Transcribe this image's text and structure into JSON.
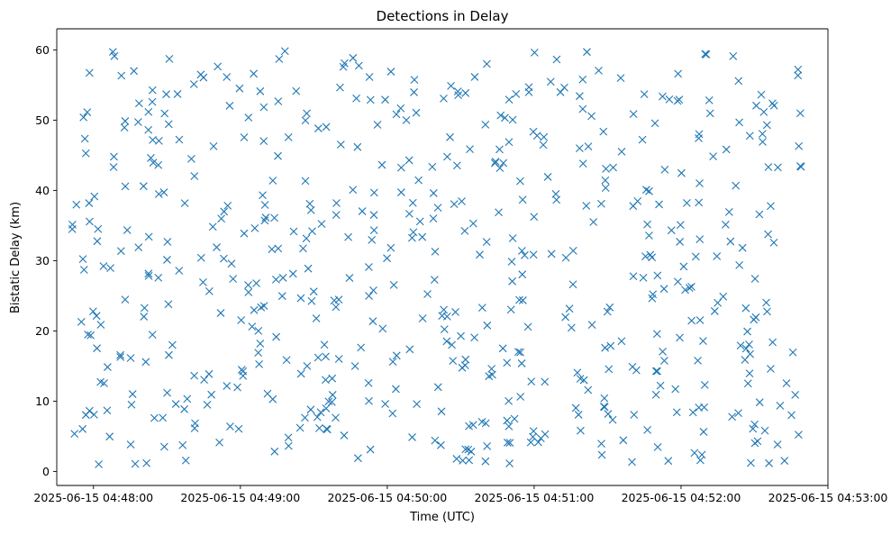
{
  "chart_data": {
    "type": "scatter",
    "title": "Detections in Delay",
    "xlabel": "Time (UTC)",
    "ylabel": "Bistatic Delay (km)",
    "marker": "x",
    "marker_color": "#1f77b4",
    "grid": false,
    "x_ticks": [
      "2025-06-15 04:48:00",
      "2025-06-15 04:49:00",
      "2025-06-15 04:50:00",
      "2025-06-15 04:51:00",
      "2025-06-15 04:52:00",
      "2025-06-15 04:53:00"
    ],
    "y_ticks": [
      "0",
      "10",
      "20",
      "30",
      "40",
      "50",
      "60"
    ],
    "xlim": [
      "2025-06-15 04:47:45",
      "2025-06-15 04:53:00"
    ],
    "ylim": [
      -2,
      63
    ],
    "x_start": "2025-06-15 04:47:50",
    "x_end": "2025-06-15 04:52:50",
    "y_range": [
      1,
      60
    ],
    "n_points": 600
  }
}
